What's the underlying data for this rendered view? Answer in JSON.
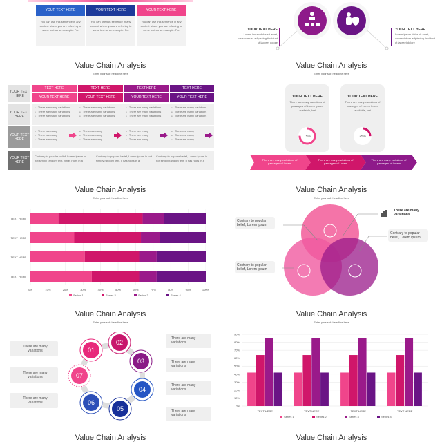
{
  "colors": {
    "pink": "#f0458b",
    "magenta": "#d0166a",
    "purple": "#9a1a8a",
    "violet": "#6a1485",
    "blue": "#2c4fb8",
    "navy": "#14238a"
  },
  "top_left": {
    "cards": [
      {
        "header": "YOUR TEXT HERE",
        "text": "You can use this sentence in any context where you are referring to some text as an example. For"
      },
      {
        "header": "YOUR TEXT HERE",
        "text": "You can use this sentence in any context where you are referring to some text as an example. For"
      },
      {
        "header": "YOUR TEXT HERE",
        "text": "You can use this sentence in any context where you are referring to some text as an example. For"
      }
    ]
  },
  "top_right": {
    "left_label": "YOUR TEXT HERE",
    "left_text": "Lorem ipsum dolor sit amet, consectetuer adipiscing tincidunt ut laoreet dolore",
    "right_label": "YOUR TEXT HERE",
    "right_text": "Lorem ipsum dolor sit amet, consectetuer adipiscing tincidunt ut laoreet dolore",
    "icon1": "hierarchy-icon",
    "icon2": "person-shield-icon"
  },
  "slides": [
    {
      "title": "Value Chain Analysis",
      "subtitle": "Enter your sub headline here"
    },
    {
      "title": "Value Chain Analysis",
      "subtitle": "Enter your sub headline here"
    },
    {
      "title": "Value Chain Analysis",
      "subtitle": "Enter your sub headline here"
    },
    {
      "title": "Value Chain Analysis",
      "subtitle": "Enter your sub headline here"
    },
    {
      "title": "Value Chain Analysis",
      "subtitle": "Enter your sub headline here"
    },
    {
      "title": "Value Chain Analysis",
      "subtitle": "Enter your sub headline here"
    },
    {
      "title": "Value Chain Analysis"
    },
    {
      "title": "Value Chain Analysis"
    }
  ],
  "table": {
    "row_labels": [
      "YOUR TEXT HERE",
      "YOUR TEXT HERE",
      "YOUR TEXT HERE",
      "YOUR TEXT HERE"
    ],
    "col_headers": [
      "TEXT HERE",
      "TEXT HERE",
      "TEXT HERE",
      "TEXT HERE"
    ],
    "sub_headers": [
      "YOUR TEXT HERE",
      "YOUR TEXT HERE",
      "YOUR TEXT HERE",
      "YOUR TEXT HERE"
    ],
    "bullet3": "There are many variations",
    "bullet_short": "There are many",
    "foot": "Contrary to popular belief, Lorem ipsum is not simply random text. It has roots in a"
  },
  "donuts": {
    "cards": [
      {
        "header": "YOUR TEXT HERE",
        "text": "There are many variations of passages of Lorem Ipsum available, but",
        "value": 75,
        "label": "75%"
      },
      {
        "header": "YOUR TEXT HERE",
        "text": "There are many variations of passages of Lorem Ipsum available, but",
        "value": 25,
        "label": "25%"
      }
    ],
    "arrows": [
      "There are many variations of passages of Lorem",
      "There are many variations of passages of Lorem",
      "There are many variations of passages of Lorem"
    ]
  },
  "venn": {
    "left_top": "Contrary to popular belief, Lorem ipsum",
    "right_top": "There are many variations",
    "right_mid": "Contrary to popular belief, Lorem ipsum",
    "left_bottom": "Contrary to popular belief, Lorem ipsum",
    "icons": [
      "brain-gear-icon",
      "gear-head-icon",
      "network-icon",
      "bar-chart-icon"
    ]
  },
  "cycle": {
    "nums": [
      "01",
      "02",
      "03",
      "04",
      "05",
      "06",
      "07"
    ],
    "left": [
      "There are many variations",
      "There are many variations",
      "There are many variations"
    ],
    "right": [
      "There are many variations",
      "There are many variations",
      "There are many variations",
      "There are many variations"
    ]
  },
  "chart_data": [
    {
      "type": "bar",
      "orientation": "horizontal",
      "stacked": true,
      "categories": [
        "TEXT HERE",
        "TEXT HERE",
        "TEXT HERE",
        "TEXT HERE"
      ],
      "series": [
        {
          "name": "Series 1",
          "values": [
            16,
            25,
            31,
            35
          ]
        },
        {
          "name": "Series 2",
          "values": [
            48,
            38,
            31,
            27
          ]
        },
        {
          "name": "Series 3",
          "values": [
            12,
            11,
            10,
            10
          ]
        },
        {
          "name": "Series 4",
          "values": [
            24,
            26,
            28,
            28
          ]
        }
      ],
      "xticks": [
        "0%",
        "10%",
        "20%",
        "30%",
        "40%",
        "50%",
        "60%",
        "70%",
        "80%",
        "90%",
        "100%"
      ],
      "legend": "bottom"
    },
    {
      "type": "bar",
      "categories": [
        "TEXT HERE",
        "TEXT HERE",
        "TEXT HERE",
        "TEXT HERE"
      ],
      "series": [
        {
          "name": "Series 1",
          "values": [
            42,
            42,
            42,
            42
          ]
        },
        {
          "name": "Series 2",
          "values": [
            64,
            64,
            64,
            64
          ]
        },
        {
          "name": "Series 3",
          "values": [
            85,
            85,
            85,
            85
          ]
        },
        {
          "name": "Series 4",
          "values": [
            42,
            42,
            42,
            42
          ]
        }
      ],
      "yticks": [
        "0%",
        "10%",
        "20%",
        "30%",
        "40%",
        "50%",
        "60%",
        "70%",
        "80%",
        "90%"
      ],
      "ylim": [
        0,
        90
      ],
      "grid": true,
      "legend": "bottom"
    }
  ]
}
